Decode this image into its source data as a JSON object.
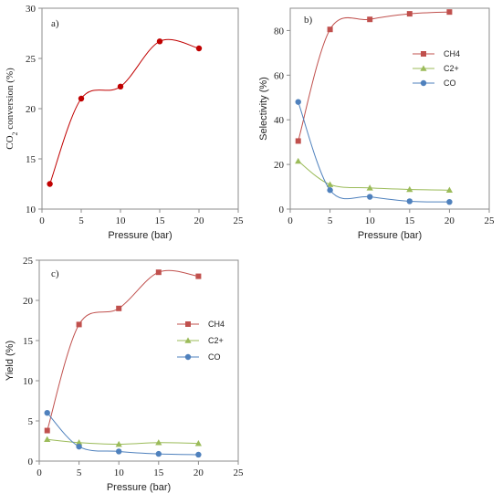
{
  "chart_data": [
    {
      "type": "line",
      "panel_label": "a)",
      "xlabel": "Pressure (bar)",
      "ylabel_prefix": "CO",
      "ylabel_sub": "2",
      "ylabel_suffix": " conversion (%)",
      "xlim": [
        0,
        25
      ],
      "ylim": [
        10,
        30
      ],
      "xticks": [
        0,
        5,
        10,
        15,
        20,
        25
      ],
      "yticks": [
        10,
        15,
        20,
        25,
        30
      ],
      "grid": false,
      "series": [
        {
          "color": "#c00000",
          "marker": "circle",
          "x": [
            1,
            5,
            10,
            15,
            20
          ],
          "y": [
            12.5,
            21.0,
            22.2,
            26.7,
            26.0
          ]
        }
      ]
    },
    {
      "type": "line",
      "panel_label": "b)",
      "xlabel": "Pressure (bar)",
      "ylabel": "Selectivity (%)",
      "xlim": [
        0,
        25
      ],
      "ylim": [
        0,
        90
      ],
      "xticks": [
        0,
        5,
        10,
        15,
        20,
        25
      ],
      "yticks": [
        0,
        20,
        40,
        60,
        80
      ],
      "grid": false,
      "legend_position": "right",
      "series": [
        {
          "name": "CH4",
          "color": "#c0504d",
          "marker": "square",
          "x": [
            1,
            5,
            10,
            15,
            20
          ],
          "y": [
            30.5,
            80.5,
            85.0,
            87.5,
            88.3
          ]
        },
        {
          "name": "C2+",
          "color": "#9bbb59",
          "marker": "triangle",
          "x": [
            1,
            5,
            10,
            15,
            20
          ],
          "y": [
            21.5,
            11.0,
            9.5,
            8.8,
            8.5
          ]
        },
        {
          "name": "CO",
          "color": "#4f81bd",
          "marker": "circle",
          "x": [
            1,
            5,
            10,
            15,
            20
          ],
          "y": [
            48.0,
            8.5,
            5.5,
            3.5,
            3.2
          ]
        }
      ]
    },
    {
      "type": "line",
      "panel_label": "c)",
      "xlabel": "Pressure (bar)",
      "ylabel": "Yield (%)",
      "xlim": [
        0,
        25
      ],
      "ylim": [
        0,
        25
      ],
      "xticks": [
        0,
        5,
        10,
        15,
        20,
        25
      ],
      "yticks": [
        0,
        5,
        10,
        15,
        20,
        25
      ],
      "grid": false,
      "legend_position": "right",
      "series": [
        {
          "name": "CH4",
          "color": "#c0504d",
          "marker": "square",
          "x": [
            1,
            5,
            10,
            15,
            20
          ],
          "y": [
            3.8,
            17.0,
            19.0,
            23.5,
            23.0
          ]
        },
        {
          "name": "C2+",
          "color": "#9bbb59",
          "marker": "triangle",
          "x": [
            1,
            5,
            10,
            15,
            20
          ],
          "y": [
            2.7,
            2.3,
            2.1,
            2.3,
            2.2
          ]
        },
        {
          "name": "CO",
          "color": "#4f81bd",
          "marker": "circle",
          "x": [
            1,
            5,
            10,
            15,
            20
          ],
          "y": [
            6.0,
            1.8,
            1.2,
            0.9,
            0.8
          ]
        }
      ]
    }
  ]
}
